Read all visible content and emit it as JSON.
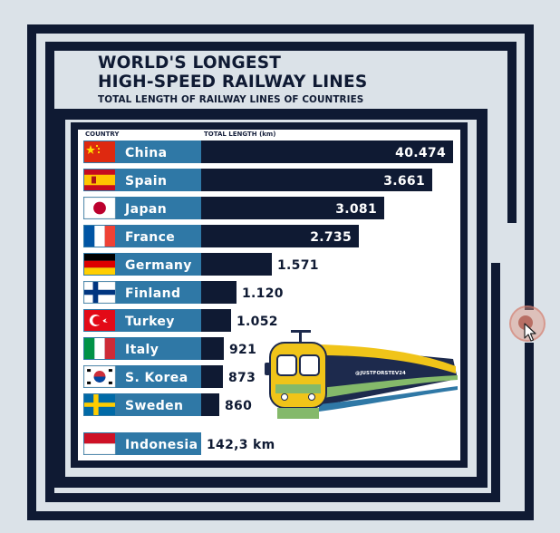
{
  "header": {
    "title_line1": "WORLD'S LONGEST",
    "title_line2": "HIGH-SPEED RAILWAY LINES",
    "subtitle": "TOTAL LENGTH OF RAILWAY LINES OF COUNTRIES"
  },
  "columns": {
    "country": "COUNTRY",
    "length": "TOTAL LENGTH (km)"
  },
  "watermark": "@JUSTFORSTEV24",
  "colors": {
    "navy": "#0f1a33",
    "label_blue": "#2f78a6",
    "background": "#dbe2e8",
    "train_yellow": "#f0c419",
    "train_green": "#84b96a"
  },
  "chart_data": {
    "type": "bar",
    "orientation": "horizontal",
    "title": "WORLD'S LONGEST HIGH-SPEED RAILWAY LINES",
    "subtitle": "TOTAL LENGTH OF RAILWAY LINES OF COUNTRIES",
    "xlabel": "TOTAL LENGTH (km)",
    "ylabel": "COUNTRY",
    "categories": [
      "China",
      "Spain",
      "Japan",
      "France",
      "Germany",
      "Finland",
      "Turkey",
      "Italy",
      "S. Korea",
      "Sweden",
      "Indonesia"
    ],
    "values": [
      40474,
      3661,
      3081,
      2735,
      1571,
      1120,
      1052,
      921,
      873,
      860,
      142.3
    ],
    "value_labels": [
      "40.474",
      "3.661",
      "3.081",
      "2.735",
      "1.571",
      "1.120",
      "1.052",
      "921",
      "873",
      "860",
      "142,3 km"
    ],
    "flags": [
      "china-flag-icon",
      "spain-flag-icon",
      "japan-flag-icon",
      "france-flag-icon",
      "germany-flag-icon",
      "finland-flag-icon",
      "turkey-flag-icon",
      "italy-flag-icon",
      "south-korea-flag-icon",
      "sweden-flag-icon",
      "indonesia-flag-icon"
    ],
    "grid": false,
    "legend": "none"
  }
}
